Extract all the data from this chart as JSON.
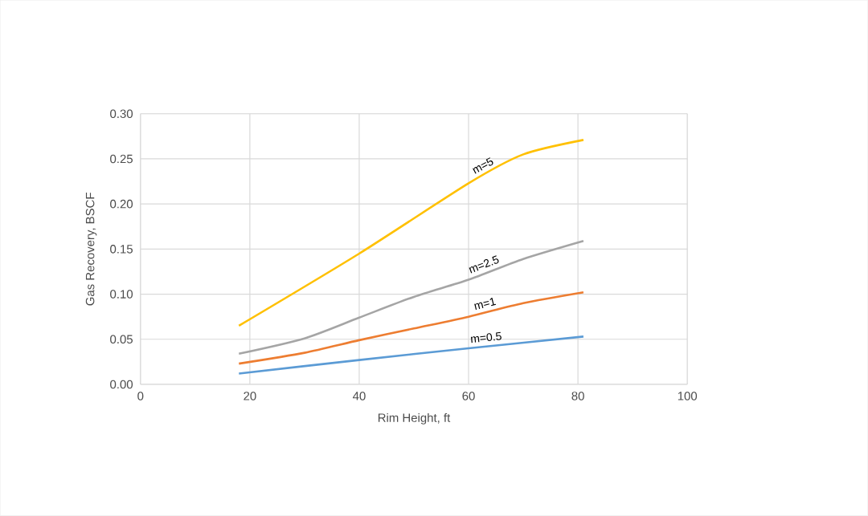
{
  "chart_data": {
    "type": "line",
    "xlabel": "Rim Height, ft",
    "ylabel": "Gas Recovery, BSCF",
    "xlim": [
      0,
      100
    ],
    "xticks": [
      0,
      20,
      40,
      60,
      80,
      100
    ],
    "ylim": [
      0,
      0.3
    ],
    "yticks": [
      {
        "value": 0,
        "label": "0.00"
      },
      {
        "value": 0.05,
        "label": "0.05"
      },
      {
        "value": 0.1,
        "label": "0.10"
      },
      {
        "value": 0.15,
        "label": "0.15"
      },
      {
        "value": 0.2,
        "label": "0.20"
      },
      {
        "value": 0.25,
        "label": "0.25"
      },
      {
        "value": 0.3,
        "label": "0.30"
      }
    ],
    "grid": true,
    "marker": "none",
    "series": [
      {
        "name": "m=0.5",
        "color": "#5b9bd5",
        "x": [
          18,
          40,
          60,
          81
        ],
        "values": [
          0.012,
          0.027,
          0.04,
          0.053
        ]
      },
      {
        "name": "m=1",
        "color": "#ed7d31",
        "x": [
          18,
          30,
          40,
          50,
          60,
          70,
          81
        ],
        "values": [
          0.023,
          0.035,
          0.049,
          0.062,
          0.075,
          0.09,
          0.102
        ]
      },
      {
        "name": "m=2.5",
        "color": "#a5a5a5",
        "x": [
          18,
          30,
          40,
          50,
          60,
          70,
          81
        ],
        "values": [
          0.034,
          0.051,
          0.074,
          0.097,
          0.116,
          0.139,
          0.159
        ]
      },
      {
        "name": "m=5",
        "color": "#ffc000",
        "x": [
          18,
          40,
          60,
          70,
          81
        ],
        "values": [
          0.065,
          0.145,
          0.223,
          0.255,
          0.271
        ]
      }
    ]
  }
}
